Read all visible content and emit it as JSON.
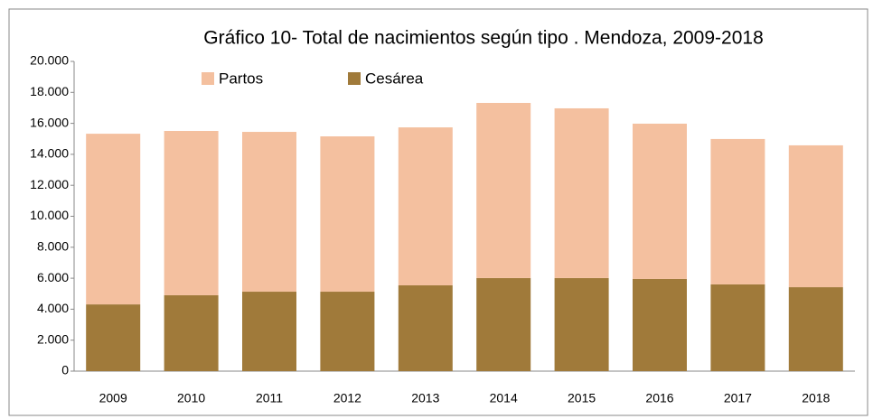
{
  "chart_data": {
    "type": "stacked_bar",
    "title": "Gráfico 10- Total de nacimientos según tipo . Mendoza, 2009-2018",
    "categories": [
      "2009",
      "2010",
      "2011",
      "2012",
      "2013",
      "2014",
      "2015",
      "2016",
      "2017",
      "2018"
    ],
    "series": [
      {
        "name": "Cesárea",
        "color": "#a07a3a",
        "values": [
          4310,
          4900,
          5130,
          5130,
          5540,
          6010,
          6010,
          5950,
          5600,
          5420
        ]
      },
      {
        "name": "Partos",
        "color": "#f4c09f",
        "values": [
          11020,
          10610,
          10320,
          10030,
          10200,
          11310,
          10960,
          10030,
          9390,
          9160
        ]
      }
    ],
    "ylim": [
      0,
      20000
    ],
    "yticks": [
      0,
      {
        "value": 2000,
        "label": "2.000"
      },
      {
        "value": 4000,
        "label": "4.000"
      },
      {
        "value": 6000,
        "label": "6.000"
      },
      {
        "value": 8000,
        "label": "8.000"
      },
      {
        "value": 10000,
        "label": "10.000"
      },
      {
        "value": 12000,
        "label": "12.000"
      },
      {
        "value": 14000,
        "label": "14.000"
      },
      {
        "value": 16000,
        "label": "16.000"
      },
      {
        "value": 18000,
        "label": "18.000"
      },
      {
        "value": 20000,
        "label": "20.000"
      }
    ],
    "grid": false
  }
}
